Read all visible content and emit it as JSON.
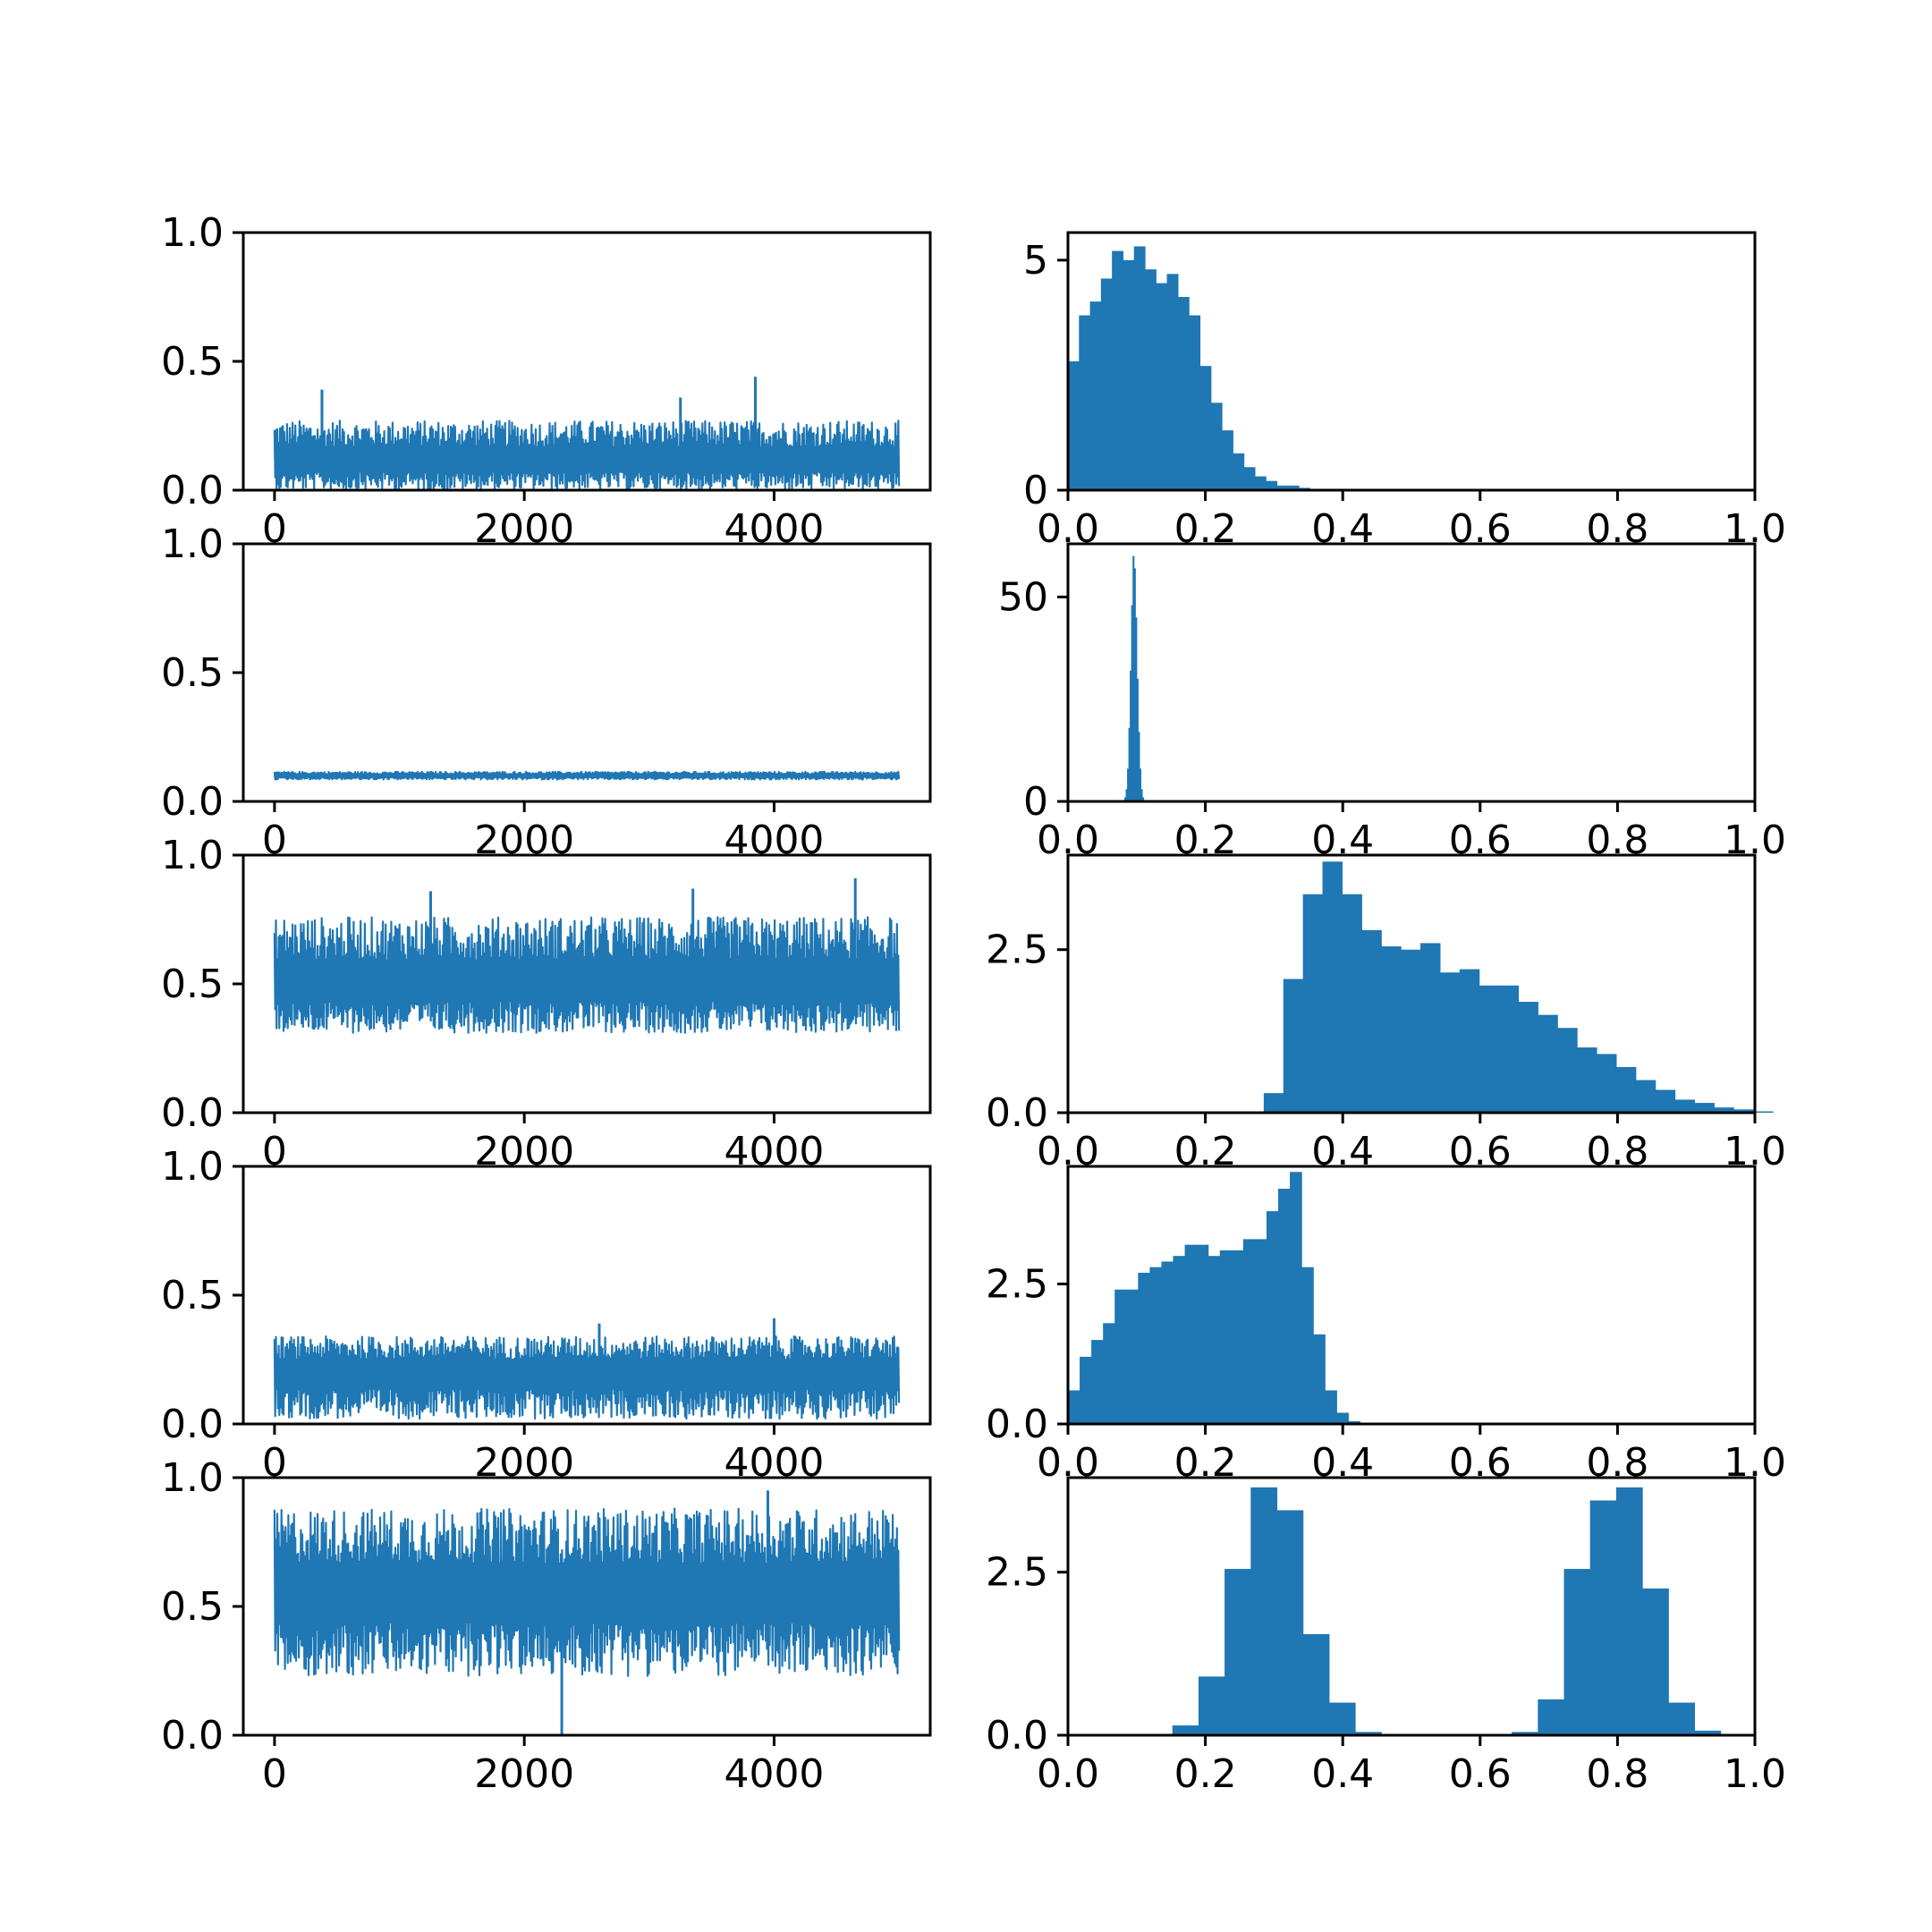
{
  "chart_data": [
    {
      "type": "line",
      "panel": "trace-1",
      "x_range": [
        0,
        5000
      ],
      "xlim": [
        -250,
        5250
      ],
      "ylim": [
        0,
        1
      ],
      "xticks": [
        "0",
        "2000",
        "4000"
      ],
      "yticks": [
        "0.0",
        "0.5",
        "1.0"
      ],
      "series": [
        {
          "n_samples": 5000,
          "center": 0.11,
          "low": 0.0,
          "high": 0.27,
          "spikes": [
            {
              "x": 380,
              "y": 0.39
            },
            {
              "x": 3250,
              "y": 0.36
            },
            {
              "x": 3850,
              "y": 0.44
            }
          ]
        }
      ]
    },
    {
      "type": "bar",
      "panel": "hist-1",
      "xlim": [
        0,
        1
      ],
      "ylim": [
        0,
        5.6
      ],
      "xticks": [
        "0.0",
        "0.2",
        "0.4",
        "0.6",
        "0.8",
        "1.0"
      ],
      "yticks": [
        "0",
        "5"
      ],
      "bin_start": 0.0,
      "bin_width": 0.016,
      "values": [
        2.8,
        3.8,
        4.1,
        4.6,
        5.2,
        5.0,
        5.3,
        4.8,
        4.5,
        4.7,
        4.2,
        3.8,
        2.7,
        1.9,
        1.3,
        0.8,
        0.5,
        0.3,
        0.2,
        0.1,
        0.1,
        0.05
      ]
    },
    {
      "type": "line",
      "panel": "trace-2",
      "x_range": [
        0,
        5000
      ],
      "xlim": [
        -250,
        5250
      ],
      "ylim": [
        0,
        1
      ],
      "xticks": [
        "0",
        "2000",
        "4000"
      ],
      "yticks": [
        "0.0",
        "0.5",
        "1.0"
      ],
      "series": [
        {
          "n_samples": 5000,
          "center": 0.1,
          "low": 0.085,
          "high": 0.115,
          "spikes": []
        }
      ]
    },
    {
      "type": "bar",
      "panel": "hist-2",
      "xlim": [
        0,
        1
      ],
      "ylim": [
        0,
        63
      ],
      "xticks": [
        "0.0",
        "0.2",
        "0.4",
        "0.6",
        "0.8",
        "1.0"
      ],
      "yticks": [
        "0",
        "50"
      ],
      "bin_start": 0.082,
      "bin_width": 0.002,
      "values": [
        1,
        3,
        8,
        18,
        32,
        48,
        60,
        57,
        45,
        30,
        17,
        8,
        3,
        1
      ]
    },
    {
      "type": "line",
      "panel": "trace-3",
      "x_range": [
        0,
        5000
      ],
      "xlim": [
        -250,
        5250
      ],
      "ylim": [
        0,
        1
      ],
      "xticks": [
        "0",
        "2000",
        "4000"
      ],
      "yticks": [
        "0.0",
        "0.5",
        "1.0"
      ],
      "series": [
        {
          "n_samples": 5000,
          "center": 0.5,
          "low": 0.31,
          "high": 0.76,
          "spikes": [
            {
              "x": 4650,
              "y": 0.91
            },
            {
              "x": 3350,
              "y": 0.87
            },
            {
              "x": 1250,
              "y": 0.86
            }
          ]
        }
      ]
    },
    {
      "type": "bar",
      "panel": "hist-3",
      "xlim": [
        0,
        1
      ],
      "ylim": [
        0,
        3.95
      ],
      "xticks": [
        "0.0",
        "0.2",
        "0.4",
        "0.6",
        "0.8",
        "1.0"
      ],
      "yticks": [
        "0.0",
        "2.5"
      ],
      "bin_start": 0.285,
      "bin_width": 0.0285,
      "values": [
        0.3,
        2.05,
        3.35,
        3.85,
        3.35,
        2.8,
        2.55,
        2.5,
        2.6,
        2.15,
        2.2,
        1.95,
        1.95,
        1.7,
        1.5,
        1.3,
        1.0,
        0.9,
        0.7,
        0.5,
        0.35,
        0.2,
        0.15,
        0.08,
        0.05,
        0.02
      ]
    },
    {
      "type": "line",
      "panel": "trace-4",
      "x_range": [
        0,
        5000
      ],
      "xlim": [
        -250,
        5250
      ],
      "ylim": [
        0,
        1
      ],
      "xticks": [
        "0",
        "2000",
        "4000"
      ],
      "yticks": [
        "0.0",
        "0.5",
        "1.0"
      ],
      "series": [
        {
          "n_samples": 5000,
          "center": 0.2,
          "low": 0.02,
          "high": 0.34,
          "spikes": [
            {
              "x": 4000,
              "y": 0.41
            },
            {
              "x": 2600,
              "y": 0.39
            }
          ]
        }
      ]
    },
    {
      "type": "bar",
      "panel": "hist-4",
      "xlim": [
        0,
        1
      ],
      "ylim": [
        0,
        4.6
      ],
      "xticks": [
        "0.0",
        "0.2",
        "0.4",
        "0.6",
        "0.8",
        "1.0"
      ],
      "yticks": [
        "0.0",
        "2.5"
      ],
      "bin_start": 0.0,
      "bin_width": 0.017,
      "values": [
        0.6,
        1.2,
        1.5,
        1.8,
        2.4,
        2.4,
        2.7,
        2.8,
        2.9,
        3.0,
        3.2,
        3.2,
        3.0,
        3.1,
        3.1,
        3.3,
        3.3,
        3.8,
        4.2,
        4.5,
        2.8,
        1.6,
        0.6,
        0.2,
        0.05
      ]
    },
    {
      "type": "line",
      "panel": "trace-5",
      "x_range": [
        0,
        5000
      ],
      "xlim": [
        -250,
        5250
      ],
      "ylim": [
        0,
        1
      ],
      "xticks": [
        "0",
        "2000",
        "4000"
      ],
      "yticks": [
        "0.0",
        "0.5",
        "1.0"
      ],
      "series": [
        {
          "n_samples": 5000,
          "center": 0.55,
          "low": 0.23,
          "high": 0.88,
          "spikes": [
            {
              "x": 2300,
              "y": 0.0
            },
            {
              "x": 3950,
              "y": 0.95
            }
          ]
        }
      ]
    },
    {
      "type": "bar",
      "panel": "hist-5",
      "xlim": [
        0,
        1
      ],
      "ylim": [
        0,
        3.95
      ],
      "xticks": [
        "0.0",
        "0.2",
        "0.4",
        "0.6",
        "0.8",
        "1.0"
      ],
      "yticks": [
        "0.0",
        "2.5"
      ],
      "bin_start": 0.0,
      "bin_width": 0.038,
      "values": [
        0,
        0,
        0,
        0,
        0.15,
        0.9,
        2.55,
        3.8,
        3.45,
        1.55,
        0.5,
        0.05,
        0,
        0,
        0,
        0,
        0,
        0.05,
        0.55,
        2.55,
        3.6,
        3.8,
        2.25,
        0.5,
        0.07,
        0
      ]
    }
  ]
}
